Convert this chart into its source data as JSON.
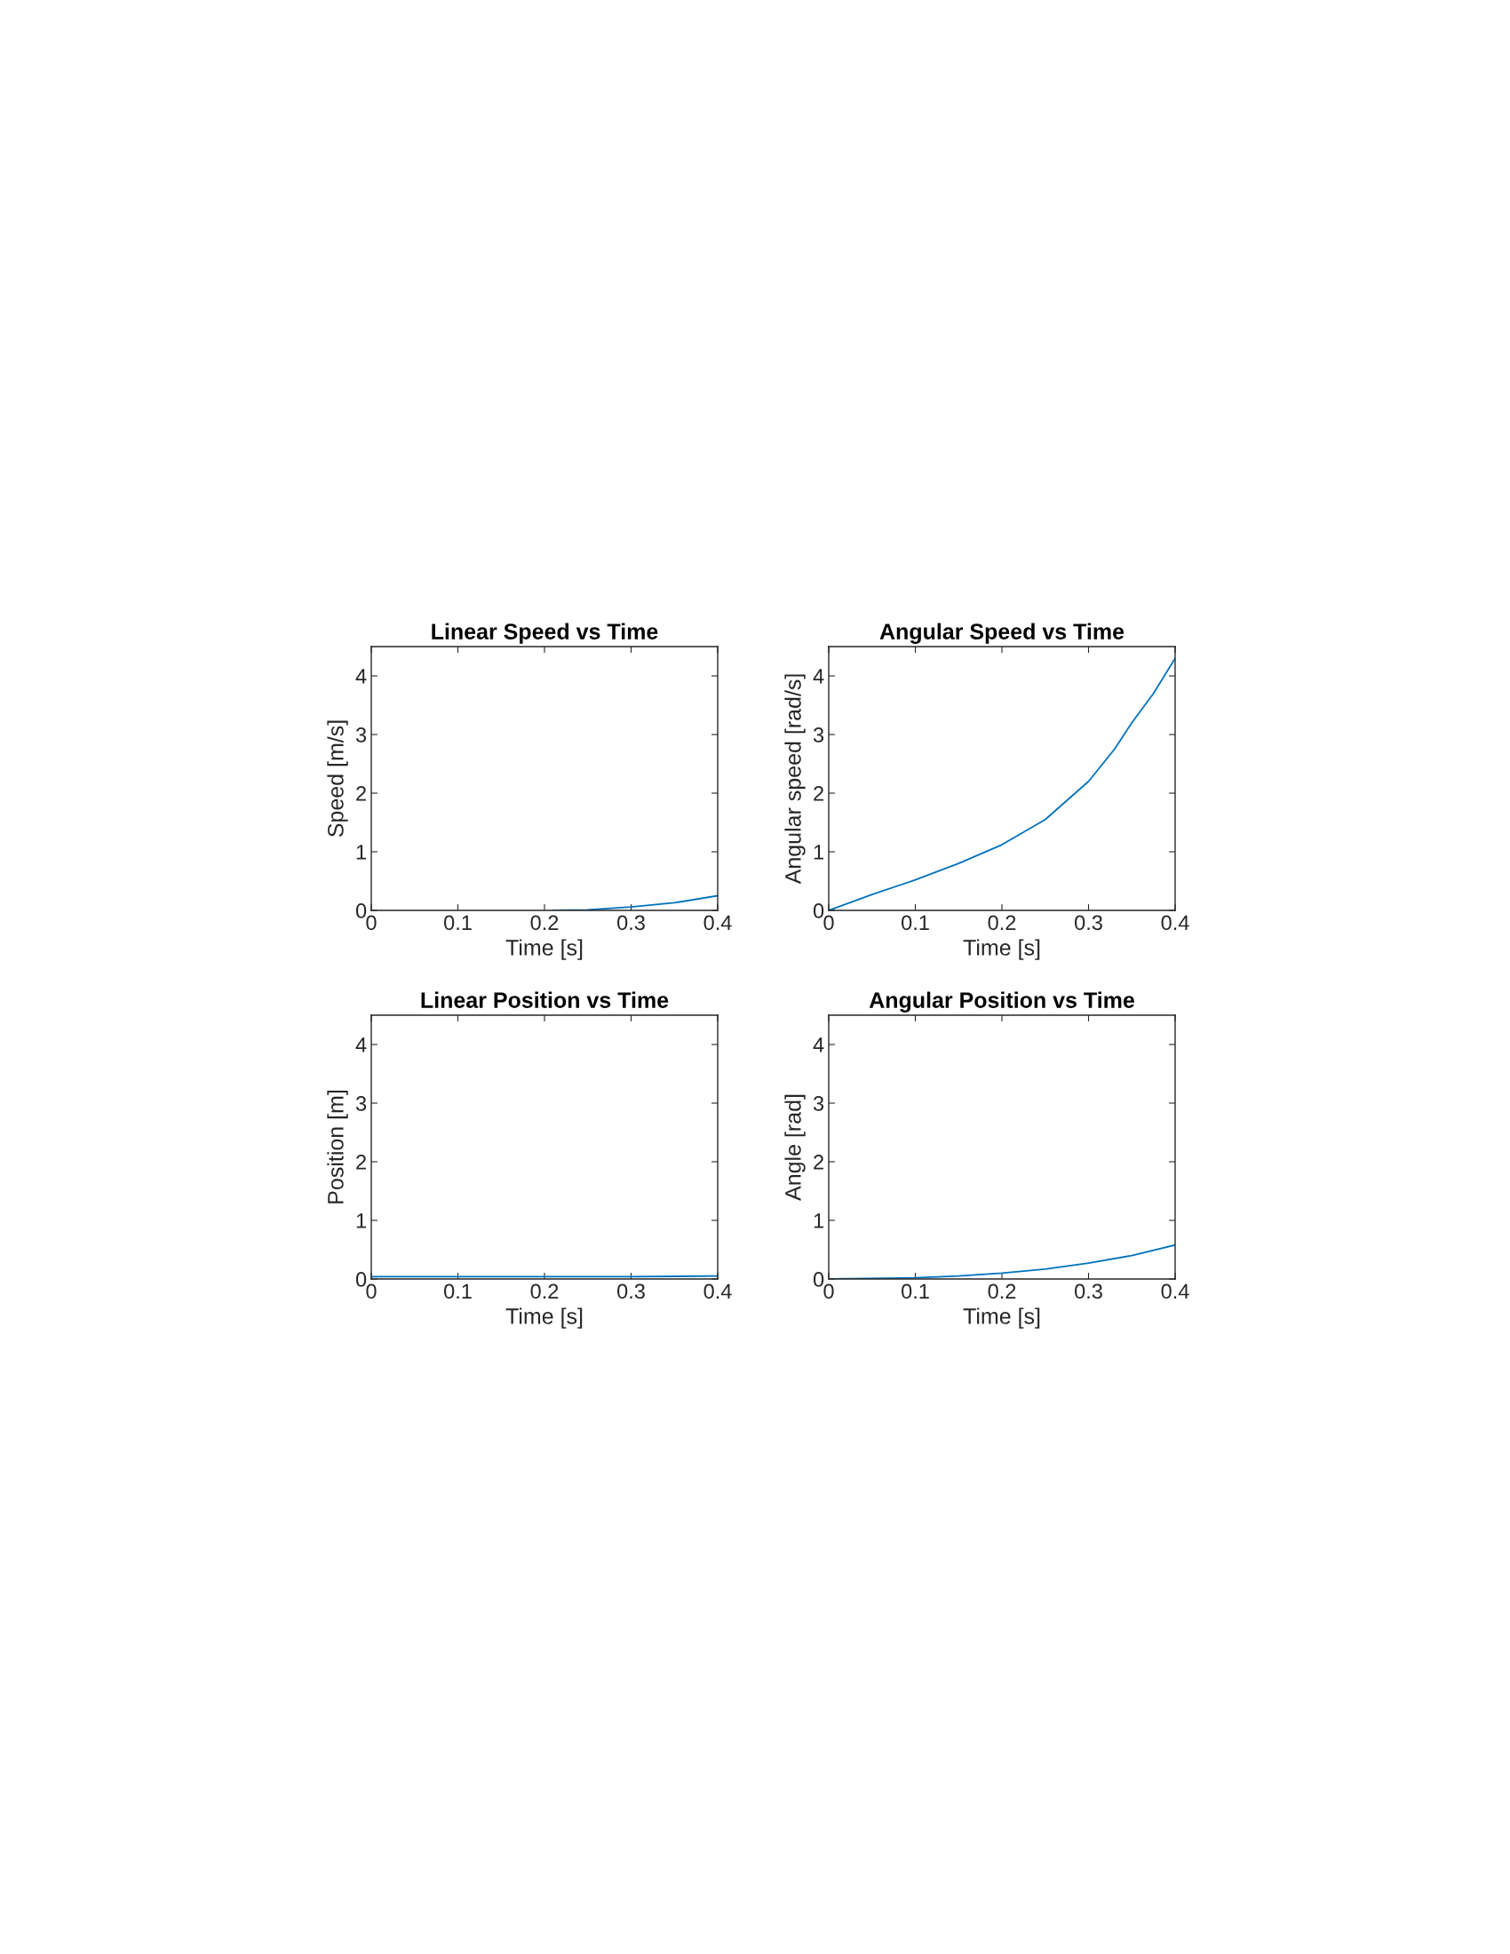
{
  "chart_data": [
    {
      "type": "line",
      "title": "Linear Speed vs Time",
      "xlabel": "Time [s]",
      "ylabel": "Speed [m/s]",
      "xlim": [
        0,
        0.4
      ],
      "ylim": [
        0,
        4.5
      ],
      "xticks": [
        0,
        0.1,
        0.2,
        0.3,
        0.4
      ],
      "yticks": [
        0,
        1,
        2,
        3,
        4
      ],
      "grid": false,
      "series": [
        {
          "color": "#0072bd",
          "x": [
            0.21,
            0.25,
            0.3,
            0.35,
            0.4
          ],
          "values": [
            0,
            0.01,
            0.06,
            0.13,
            0.25
          ]
        }
      ]
    },
    {
      "type": "line",
      "title": "Angular Speed vs Time",
      "xlabel": "Time [s]",
      "ylabel": "Angular speed [rad/s]",
      "xlim": [
        0,
        0.4
      ],
      "ylim": [
        0,
        4.5
      ],
      "xticks": [
        0,
        0.1,
        0.2,
        0.3,
        0.4
      ],
      "yticks": [
        0,
        1,
        2,
        3,
        4
      ],
      "grid": false,
      "series": [
        {
          "color": "#0072bd",
          "x": [
            0,
            0.05,
            0.1,
            0.15,
            0.2,
            0.25,
            0.3,
            0.33,
            0.35,
            0.375,
            0.4
          ],
          "values": [
            0,
            0.27,
            0.52,
            0.8,
            1.12,
            1.55,
            2.2,
            2.75,
            3.2,
            3.7,
            4.3
          ]
        }
      ]
    },
    {
      "type": "line",
      "title": "Linear Position vs Time",
      "xlabel": "Time [s]",
      "ylabel": "Position [m]",
      "xlim": [
        0,
        0.4
      ],
      "ylim": [
        0,
        4.5
      ],
      "xticks": [
        0,
        0.1,
        0.2,
        0.3,
        0.4
      ],
      "yticks": [
        0,
        1,
        2,
        3,
        4
      ],
      "grid": false,
      "series": [
        {
          "color": "#0072bd",
          "x": [
            0,
            0.1,
            0.2,
            0.3,
            0.4
          ],
          "values": [
            0.04,
            0.04,
            0.04,
            0.04,
            0.05
          ]
        }
      ]
    },
    {
      "type": "line",
      "title": "Angular Position vs Time",
      "xlabel": "Time [s]",
      "ylabel": "Angle [rad]",
      "xlim": [
        0,
        0.4
      ],
      "ylim": [
        0,
        4.5
      ],
      "xticks": [
        0,
        0.1,
        0.2,
        0.3,
        0.4
      ],
      "yticks": [
        0,
        1,
        2,
        3,
        4
      ],
      "grid": false,
      "series": [
        {
          "color": "#0072bd",
          "x": [
            0,
            0.1,
            0.15,
            0.2,
            0.25,
            0.3,
            0.35,
            0.4
          ],
          "values": [
            0,
            0.02,
            0.05,
            0.1,
            0.17,
            0.27,
            0.4,
            0.58
          ]
        }
      ]
    }
  ]
}
